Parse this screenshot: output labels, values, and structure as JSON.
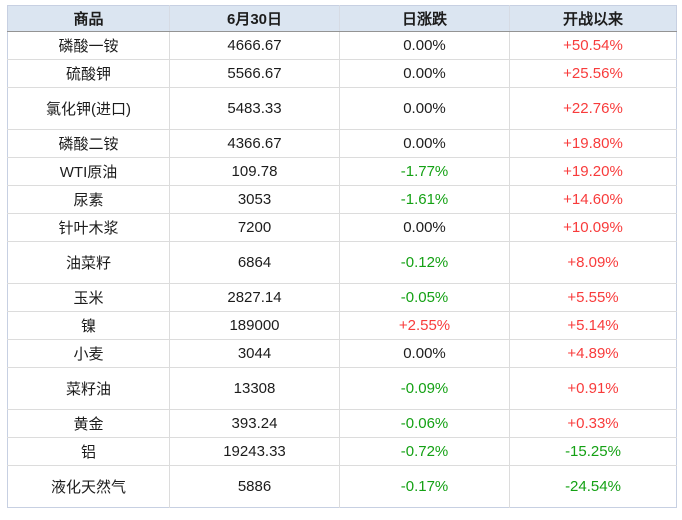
{
  "chart_data": {
    "type": "table",
    "columns": [
      "商品",
      "6月30日",
      "日涨跌",
      "开战以来"
    ],
    "rows": [
      {
        "commodity": "磷酸一铵",
        "price": "4666.67",
        "daily_change": "0.00%",
        "since_war": "+50.54%",
        "tall": false
      },
      {
        "commodity": "硫酸钾",
        "price": "5566.67",
        "daily_change": "0.00%",
        "since_war": "+25.56%",
        "tall": false
      },
      {
        "commodity": "氯化钾(进口)",
        "price": "5483.33",
        "daily_change": "0.00%",
        "since_war": "+22.76%",
        "tall": true
      },
      {
        "commodity": "磷酸二铵",
        "price": "4366.67",
        "daily_change": "0.00%",
        "since_war": "+19.80%",
        "tall": false
      },
      {
        "commodity": "WTI原油",
        "price": "109.78",
        "daily_change": "-1.77%",
        "since_war": "+19.20%",
        "tall": false
      },
      {
        "commodity": "尿素",
        "price": "3053",
        "daily_change": "-1.61%",
        "since_war": "+14.60%",
        "tall": false
      },
      {
        "commodity": "针叶木浆",
        "price": "7200",
        "daily_change": "0.00%",
        "since_war": "+10.09%",
        "tall": false
      },
      {
        "commodity": "油菜籽",
        "price": "6864",
        "daily_change": "-0.12%",
        "since_war": "+8.09%",
        "tall": true
      },
      {
        "commodity": "玉米",
        "price": "2827.14",
        "daily_change": "-0.05%",
        "since_war": "+5.55%",
        "tall": false
      },
      {
        "commodity": "镍",
        "price": "189000",
        "daily_change": "+2.55%",
        "since_war": "+5.14%",
        "tall": false
      },
      {
        "commodity": "小麦",
        "price": "3044",
        "daily_change": "0.00%",
        "since_war": "+4.89%",
        "tall": false
      },
      {
        "commodity": "菜籽油",
        "price": "13308",
        "daily_change": "-0.09%",
        "since_war": "+0.91%",
        "tall": true
      },
      {
        "commodity": "黄金",
        "price": "393.24",
        "daily_change": "-0.06%",
        "since_war": "+0.33%",
        "tall": false
      },
      {
        "commodity": "铝",
        "price": "19243.33",
        "daily_change": "-0.72%",
        "since_war": "-15.25%",
        "tall": false
      },
      {
        "commodity": "液化天然气",
        "price": "5886",
        "daily_change": "-0.17%",
        "since_war": "-24.54%",
        "tall": true
      }
    ]
  },
  "colors": {
    "up_red": "#f83b3b",
    "down_green": "#14a114",
    "flat_black": "#1c1c1c",
    "header_bg": "#dbe5f1"
  }
}
